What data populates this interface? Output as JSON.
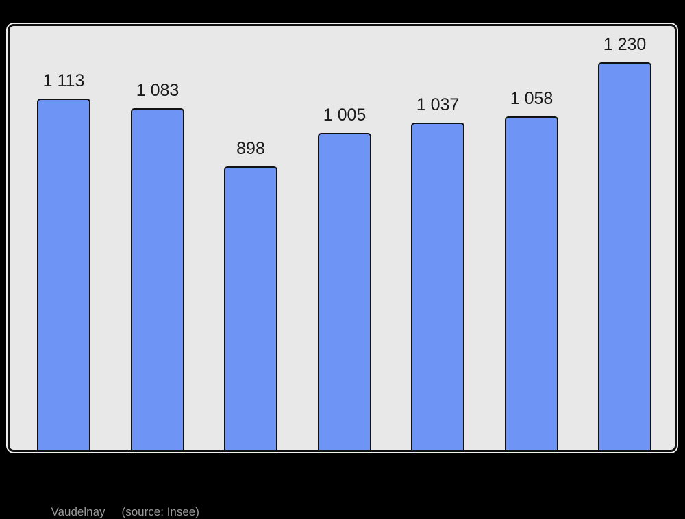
{
  "chart_data": {
    "type": "bar",
    "values": [
      1113,
      1083,
      898,
      1005,
      1037,
      1058,
      1230
    ],
    "value_labels": [
      "1 113",
      "1 083",
      "898",
      "1 005",
      "1 037",
      "1 058",
      "1 230"
    ],
    "title": "",
    "xlabel": "",
    "ylabel": "",
    "ylim": [
      0,
      1350
    ],
    "grid": false,
    "legend": false,
    "bar_count": 7
  },
  "caption": {
    "place": "Vaudelnay",
    "source": "(source: Insee)"
  },
  "colors": {
    "page_bg": "#000000",
    "plot_bg": "#e8e8e8",
    "frame_border": "#111111",
    "frame_glow": "#f0f0f0",
    "bar_fill": "#6e95f5",
    "bar_border": "#111111",
    "label_text": "#1a1a1a",
    "caption_text": "#9a9a9a"
  }
}
